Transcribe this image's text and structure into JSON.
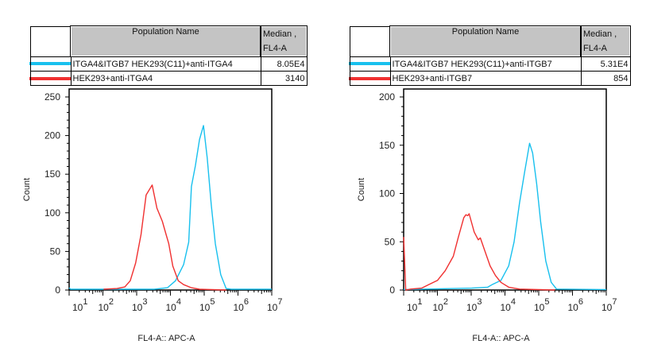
{
  "chart_data": [
    {
      "type": "line",
      "xlabel": "FL4-A:: APC-A",
      "ylabel": "Count",
      "xscale": "log",
      "xlim": [
        10,
        10000000
      ],
      "ylim": [
        0,
        250
      ],
      "xticks": [
        {
          "base": "10",
          "exp": "1"
        },
        {
          "base": "10",
          "exp": "2"
        },
        {
          "base": "10",
          "exp": "3"
        },
        {
          "base": "10",
          "exp": "4"
        },
        {
          "base": "10",
          "exp": "5"
        },
        {
          "base": "10",
          "exp": "6"
        },
        {
          "base": "10",
          "exp": "7"
        }
      ],
      "yticks": [
        "0",
        "50",
        "100",
        "150",
        "200",
        "250"
      ],
      "legend_table": {
        "col_name": "Population Name",
        "col_median": [
          "Median ,",
          "FL4-A"
        ],
        "rows": [
          {
            "name": "ITGA4&ITGB7 HEK293(C11)+anti-ITGA4",
            "median": "8.05E4",
            "color": "#18c0ee"
          },
          {
            "name": "HEK293+anti-ITGA4",
            "median": "3140",
            "color": "#f03030"
          }
        ]
      },
      "series": [
        {
          "name": "ITGA4&ITGB7 HEK293(C11)+anti-ITGA4",
          "color": "#18c0ee",
          "points": [
            [
              10,
              3
            ],
            [
              11,
              1
            ],
            [
              3311,
              1
            ],
            [
              8128,
              3
            ],
            [
              14125,
              12
            ],
            [
              24547,
              33
            ],
            [
              34674,
              62
            ],
            [
              41687,
              134
            ],
            [
              54954,
              161
            ],
            [
              72444,
              195
            ],
            [
              95499,
              213
            ],
            [
              123027,
              171
            ],
            [
              162181,
              110
            ],
            [
              213796,
              60
            ],
            [
              309030,
              20
            ],
            [
              446684,
              2
            ],
            [
              630957,
              1
            ],
            [
              10000000,
              1
            ]
          ]
        },
        {
          "name": "HEK293+anti-ITGA4",
          "color": "#f03030",
          "points": [
            [
              105,
              1
            ],
            [
              263,
              2
            ],
            [
              447,
              4
            ],
            [
              646,
              12
            ],
            [
              933,
              35
            ],
            [
              1349,
              72
            ],
            [
              1905,
              123
            ],
            [
              2884,
              136
            ],
            [
              3981,
              106
            ],
            [
              5754,
              89
            ],
            [
              7413,
              72
            ],
            [
              8913,
              60
            ],
            [
              11750,
              31
            ],
            [
              16982,
              12
            ],
            [
              24547,
              7
            ],
            [
              41687,
              3
            ],
            [
              72444,
              1
            ],
            [
              446684,
              0
            ]
          ]
        }
      ]
    },
    {
      "type": "line",
      "xlabel": "FL4-A:: APC-A",
      "ylabel": "Count",
      "xscale": "log",
      "xlim": [
        10,
        10000000
      ],
      "ylim": [
        0,
        200
      ],
      "xticks": [
        {
          "base": "10",
          "exp": "1"
        },
        {
          "base": "10",
          "exp": "2"
        },
        {
          "base": "10",
          "exp": "3"
        },
        {
          "base": "10",
          "exp": "4"
        },
        {
          "base": "10",
          "exp": "5"
        },
        {
          "base": "10",
          "exp": "6"
        },
        {
          "base": "10",
          "exp": "7"
        }
      ],
      "yticks": [
        "0",
        "50",
        "100",
        "150",
        "200"
      ],
      "legend_table": {
        "col_name": "Population Name",
        "col_median": [
          "Median ,",
          "FL4-A"
        ],
        "rows": [
          {
            "name": "ITGA4&ITGB7 HEK293(C11)+anti-ITGB7",
            "median": "5.31E4",
            "color": "#18c0ee"
          },
          {
            "name": "HEK293+anti-ITGB7",
            "median": "854",
            "color": "#f03030"
          }
        ]
      },
      "series": [
        {
          "name": "ITGA4&ITGB7 HEK293(C11)+anti-ITGB7",
          "color": "#18c0ee",
          "points": [
            [
              10,
              0.5
            ],
            [
              1047,
              2
            ],
            [
              3090,
              3
            ],
            [
              4365,
              6
            ],
            [
              7586,
              10
            ],
            [
              12882,
              25
            ],
            [
              18621,
              50
            ],
            [
              26915,
              90
            ],
            [
              38019,
              122
            ],
            [
              53703,
              152
            ],
            [
              66069,
              142
            ],
            [
              87096,
              110
            ],
            [
              114815,
              70
            ],
            [
              162181,
              30
            ],
            [
              234423,
              8
            ],
            [
              338844,
              1
            ],
            [
              10000000,
              0.5
            ]
          ]
        },
        {
          "name": "HEK293+anti-ITGB7",
          "color": "#f03030",
          "points": [
            [
              10,
              55
            ],
            [
              10.7,
              30
            ],
            [
              11.5,
              0
            ],
            [
              16,
              1
            ],
            [
              34,
              2
            ],
            [
              58,
              6
            ],
            [
              100,
              10
            ],
            [
              170,
              20
            ],
            [
              295,
              35
            ],
            [
              417,
              55
            ],
            [
              603,
              75
            ],
            [
              700,
              78
            ],
            [
              794,
              77
            ],
            [
              870,
              79
            ],
            [
              1230,
              60
            ],
            [
              1622,
              52
            ],
            [
              1862,
              54
            ],
            [
              2570,
              40
            ],
            [
              3631,
              25
            ],
            [
              5248,
              15
            ],
            [
              7586,
              8
            ],
            [
              12882,
              3
            ],
            [
              26915,
              1
            ],
            [
              300000,
              0
            ]
          ]
        }
      ]
    }
  ]
}
